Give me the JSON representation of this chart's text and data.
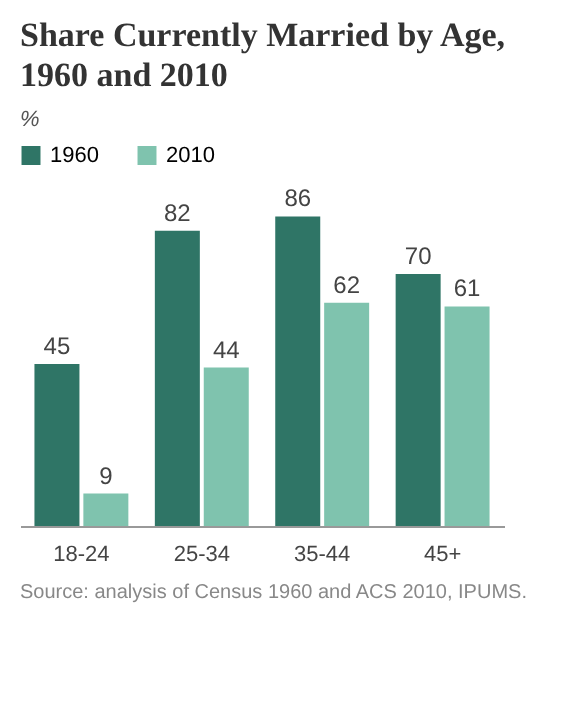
{
  "chart_data": {
    "type": "bar",
    "title": "Share Currently Married by Age, 1960 and 2010",
    "subtitle": "%",
    "categories": [
      "18-24",
      "25-34",
      "35-44",
      "45+"
    ],
    "series": [
      {
        "name": "1960",
        "color": "#2f7566",
        "values": [
          45,
          82,
          86,
          70
        ]
      },
      {
        "name": "2010",
        "color": "#7fc3ae",
        "values": [
          9,
          44,
          62,
          61
        ]
      }
    ],
    "data_labels": true,
    "grid": false,
    "legend": "top",
    "annotations": [
      "Source: analysis of Census 1960 and ACS 2010, IPUMS."
    ]
  }
}
